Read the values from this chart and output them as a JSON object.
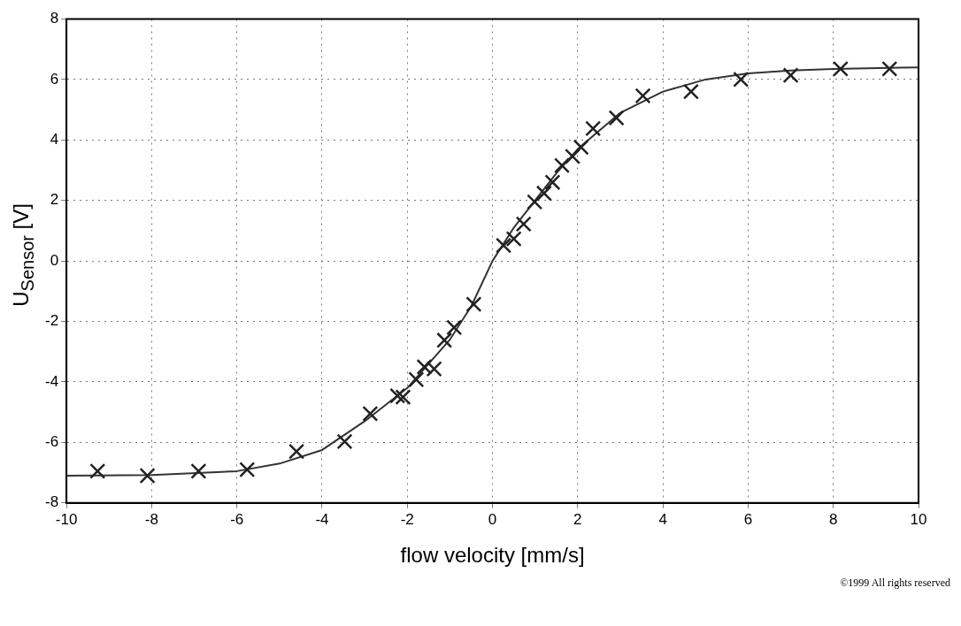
{
  "chart_data": {
    "type": "scatter",
    "xlabel": "flow velocity [mm/s]",
    "ylabel": "U$_{Sensor}$ [V]",
    "annotations": [
      "©1999 All rights reserved"
    ],
    "xlim": [
      -10,
      10
    ],
    "xticks": [
      -10,
      -8,
      -6,
      -4,
      -2,
      0,
      2,
      4,
      6,
      8,
      10
    ],
    "ylim": [
      -8,
      8
    ],
    "yticks": [
      -8,
      -6,
      -4,
      -2,
      0,
      2,
      4,
      6,
      8
    ],
    "grid": true,
    "legend": false,
    "series": [
      {
        "marker": "cross",
        "color": "#222222",
        "x": [
          -9.27,
          -8.1,
          -6.9,
          -5.76,
          -4.6,
          -3.47,
          -2.87,
          -2.23,
          -2.1,
          -1.79,
          -1.6,
          -1.37,
          -1.13,
          -0.9,
          -0.44,
          0.26,
          0.5,
          0.73,
          0.99,
          1.21,
          1.41,
          1.63,
          1.88,
          2.08,
          2.36,
          2.91,
          3.53,
          4.66,
          5.83,
          7.0,
          8.17,
          9.32
        ],
        "values": [
          -6.95,
          -7.1,
          -6.95,
          -6.9,
          -6.3,
          -5.97,
          -5.05,
          -4.46,
          -4.5,
          -3.92,
          -3.5,
          -3.57,
          -2.62,
          -2.2,
          -1.43,
          0.51,
          0.73,
          1.22,
          1.95,
          2.24,
          2.6,
          3.16,
          3.46,
          3.76,
          4.38,
          4.73,
          5.46,
          5.6,
          6.0,
          6.14,
          6.35,
          6.35
        ]
      },
      {
        "type": "line",
        "marker": "none",
        "line_style": "solid",
        "color": "#333333",
        "x": [
          -10,
          -8,
          -6,
          -5,
          -4,
          -3,
          -2,
          -1,
          -0.5,
          0,
          0.5,
          1,
          1.5,
          2,
          3,
          4,
          5,
          6,
          7,
          8,
          10
        ],
        "values": [
          -7.1,
          -7.08,
          -6.95,
          -6.7,
          -6.25,
          -5.3,
          -4.2,
          -2.6,
          -1.5,
          0.0,
          1.1,
          2.0,
          2.9,
          3.7,
          4.9,
          5.6,
          6.0,
          6.2,
          6.3,
          6.35,
          6.4
        ]
      }
    ]
  }
}
